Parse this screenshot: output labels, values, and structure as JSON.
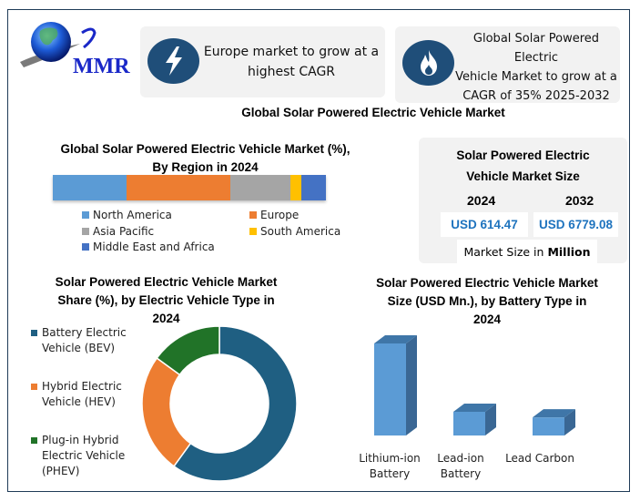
{
  "brand": {
    "logo_text": "MMR",
    "logo_icon": "globe-icon"
  },
  "cards": [
    {
      "icon": "lightning-bolt-icon",
      "text_lines": [
        "Europe market to grow at a",
        "highest CAGR"
      ]
    },
    {
      "icon": "flame-icon",
      "text_lines": [
        "Global Solar Powered Electric",
        "Vehicle Market to grow at a",
        "CAGR of 35% 2025-2032"
      ]
    }
  ],
  "main_title": "Global Solar Powered Electric Vehicle Market",
  "market_size": {
    "title_lines": [
      "Solar Powered Electric",
      "Vehicle Market Size"
    ],
    "years": [
      {
        "year": "2024",
        "value": "USD 614.47"
      },
      {
        "year": "2032",
        "value": "USD 6779.08"
      }
    ],
    "unit_prefix": "Market Size in ",
    "unit_bold": "Million"
  },
  "colors": {
    "frame": "#1f3b57",
    "card_bg": "#f2f2f2",
    "icon_bg": "#1f4e79",
    "value_text": "#1e73be"
  },
  "chart_data": [
    {
      "type": "bar",
      "orientation": "horizontal-stacked-100",
      "title_lines": [
        "Global Solar Powered Electric Vehicle Market (%),",
        "By Region in 2024"
      ],
      "legend_position": "bottom",
      "series": [
        {
          "name": "North America",
          "value": 27,
          "color": "#5b9bd5"
        },
        {
          "name": "Europe",
          "value": 38,
          "color": "#ed7d31"
        },
        {
          "name": "Asia Pacific",
          "value": 22,
          "color": "#a5a5a5"
        },
        {
          "name": "South America",
          "value": 4,
          "color": "#ffc000"
        },
        {
          "name": "Middle East and Africa",
          "value": 9,
          "color": "#4472c4"
        }
      ],
      "unit": "%"
    },
    {
      "type": "pie",
      "variant": "donut",
      "title_lines": [
        "Solar Powered Electric Vehicle Market",
        "Share (%), by Electric Vehicle Type in",
        "2024"
      ],
      "legend_position": "left",
      "slices": [
        {
          "name_lines": [
            "Battery Electric",
            "Vehicle (BEV)"
          ],
          "value": 60,
          "color": "#1f5f82"
        },
        {
          "name_lines": [
            "Hybrid Electric",
            "Vehicle (HEV)"
          ],
          "value": 25,
          "color": "#ed7d31"
        },
        {
          "name_lines": [
            "Plug-in Hybrid",
            "Electric Vehicle",
            "(PHEV)"
          ],
          "value": 15,
          "color": "#217328"
        }
      ],
      "unit": "%"
    },
    {
      "type": "bar",
      "variant": "3d-column",
      "title_lines": [
        "Solar Powered Electric Vehicle Market",
        "Size (USD Mn.), by Battery Type in",
        "2024"
      ],
      "categories": [
        {
          "label_lines": [
            "Lithium-ion",
            "Battery"
          ]
        },
        {
          "label_lines": [
            "Lead-ion",
            "Battery"
          ]
        },
        {
          "label_lines": [
            "Lead Carbon"
          ]
        }
      ],
      "values": [
        423,
        109,
        83
      ],
      "ylabel": "USD Mn.",
      "ylim": [
        0,
        423
      ],
      "grid": false,
      "colors": {
        "front": "#5b9bd5",
        "top": "#3f76a8",
        "side": "#3a6794"
      }
    }
  ]
}
